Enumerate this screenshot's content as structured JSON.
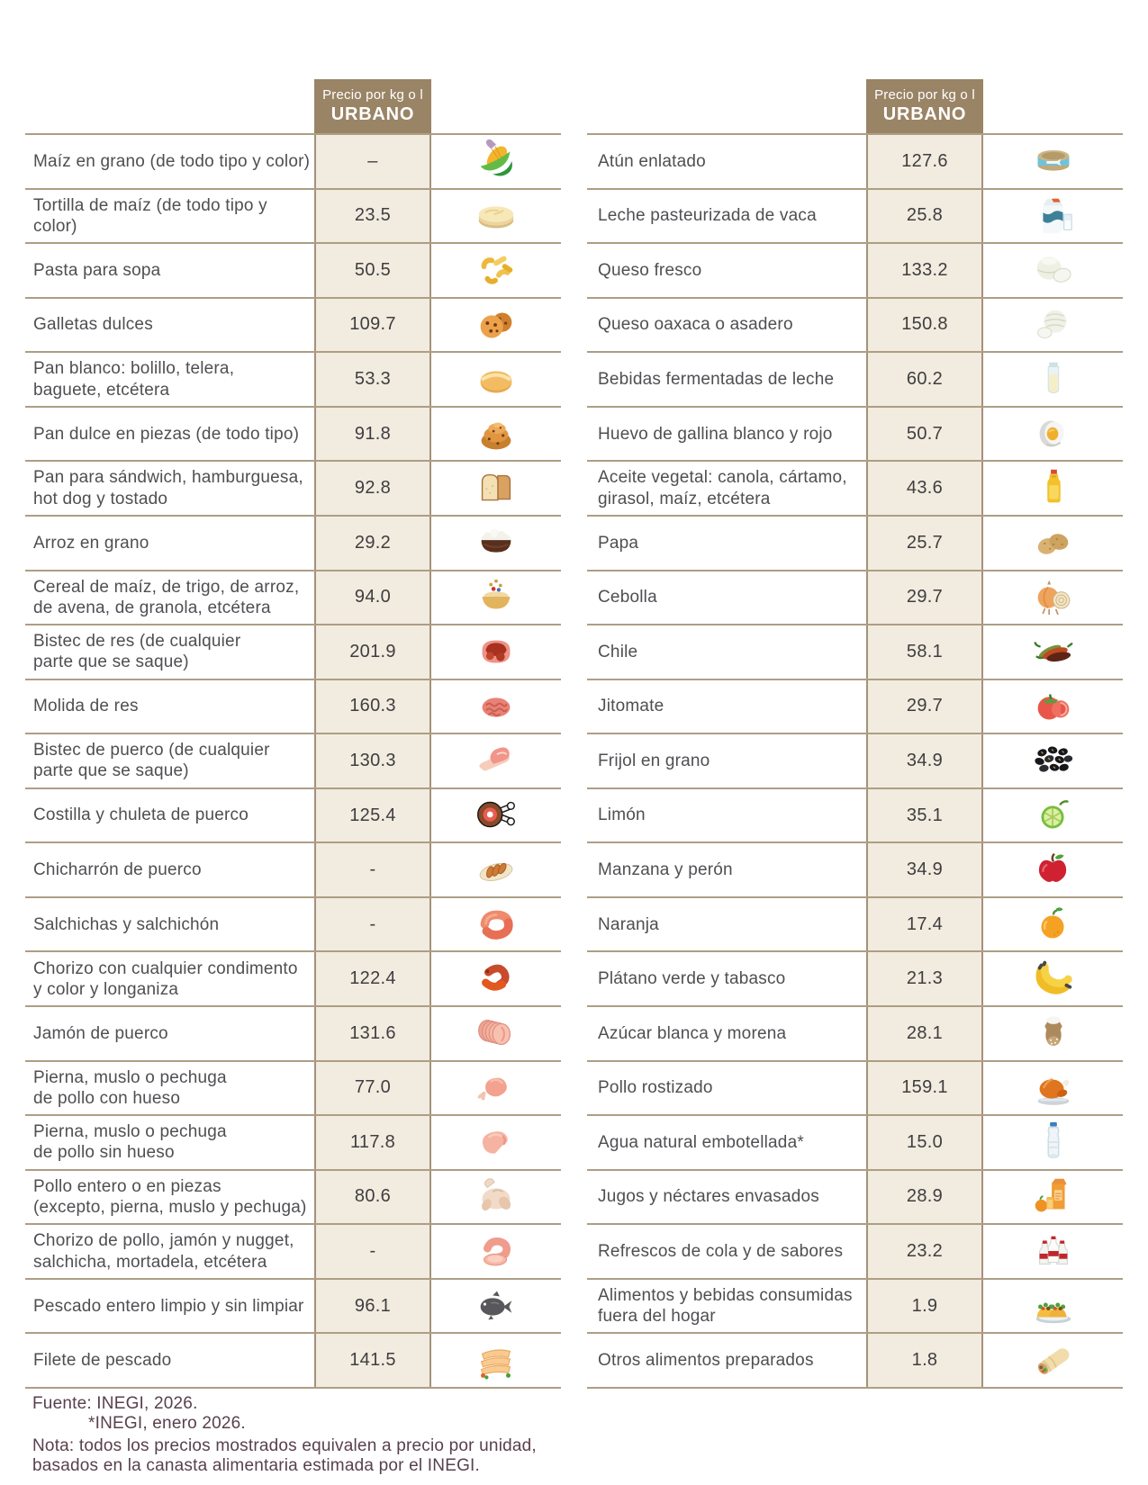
{
  "colors": {
    "header_bg": "#9a8466",
    "price_column_bg": "#f2ebdf",
    "divider": "#ad9e84",
    "item_text": "#4f4f53",
    "price_text": "#3e3e40",
    "footer_text": "#59404e",
    "header_text": "#ffffff"
  },
  "tables": [
    {
      "side": "left",
      "header": {
        "line1": "Precio por kg o l",
        "line2": "URBANO"
      },
      "rows": [
        {
          "name": "Maíz en grano (de todo tipo y color)",
          "price": "–",
          "icon": "corn-icon"
        },
        {
          "name": "Tortilla de maíz (de todo tipo y color)",
          "price": "23.5",
          "icon": "tortilla-icon"
        },
        {
          "name": "Pasta para sopa",
          "price": "50.5",
          "icon": "pasta-icon"
        },
        {
          "name": "Galletas dulces",
          "price": "109.7",
          "icon": "cookies-icon"
        },
        {
          "name": "Pan blanco: bolillo, telera,\nbaguete, etcétera",
          "price": "53.3",
          "icon": "bread-roll-icon"
        },
        {
          "name": "Pan dulce en piezas (de todo tipo)",
          "price": "91.8",
          "icon": "sweet-bun-icon"
        },
        {
          "name": "Pan para sándwich, hamburguesa,\nhot dog y tostado",
          "price": "92.8",
          "icon": "sandwich-bread-icon"
        },
        {
          "name": "Arroz en grano",
          "price": "29.2",
          "icon": "rice-bowl-icon"
        },
        {
          "name": "Cereal de maíz, de trigo, de arroz,\nde avena, de granola, etcétera",
          "price": "94.0",
          "icon": "cereal-bowl-icon"
        },
        {
          "name": "Bistec de res (de cualquier\nparte que se saque)",
          "price": "201.9",
          "icon": "beef-steak-icon"
        },
        {
          "name": "Molida de res",
          "price": "160.3",
          "icon": "ground-beef-icon"
        },
        {
          "name": " Bistec de puerco (de cualquier\n parte que se saque)",
          "price": "130.3",
          "icon": "pork-steak-icon"
        },
        {
          "name": "Costilla y chuleta de puerco",
          "price": "125.4",
          "icon": "ham-leg-icon"
        },
        {
          "name": "Chicharrón de puerco",
          "price": "-",
          "icon": "chicharron-icon"
        },
        {
          "name": "Salchichas y salchichón",
          "price": "-",
          "icon": "sausages-icon"
        },
        {
          "name": "Chorizo con cualquier condimento\n y color y longaniza",
          "price": "122.4",
          "icon": "chorizo-icon"
        },
        {
          "name": "Jamón de puerco",
          "price": "131.6",
          "icon": "ham-slices-icon"
        },
        {
          "name": "Pierna, muslo o pechuga\nde pollo con hueso",
          "price": "77.0",
          "icon": "chicken-leg-icon"
        },
        {
          "name": "Pierna, muslo o pechuga\nde pollo sin hueso",
          "price": "117.8",
          "icon": "chicken-breast-icon"
        },
        {
          "name": "Pollo entero o en piezas\n(excepto, pierna, muslo y pechuga)",
          "price": "80.6",
          "icon": "whole-chicken-icon"
        },
        {
          "name": "Chorizo de pollo, jamón y nugget,\nsalchicha, mortadela, etcétera",
          "price": "-",
          "icon": "cold-cuts-icon"
        },
        {
          "name": "Pescado entero limpio y sin limpiar",
          "price": "96.1",
          "icon": "fish-icon"
        },
        {
          "name": "Filete de pescado",
          "price": "141.5",
          "icon": "fish-fillet-icon"
        }
      ]
    },
    {
      "side": "right",
      "header": {
        "line1": "Precio por kg o l",
        "line2": "URBANO"
      },
      "rows": [
        {
          "name": "Atún enlatado",
          "price": "127.6",
          "icon": "tuna-can-icon"
        },
        {
          "name": "Leche pasteurizada de vaca",
          "price": "25.8",
          "icon": "milk-carton-icon"
        },
        {
          "name": "Queso fresco",
          "price": "133.2",
          "icon": "fresh-cheese-icon"
        },
        {
          "name": "Queso oaxaca o asadero",
          "price": "150.8",
          "icon": "oaxaca-cheese-icon"
        },
        {
          "name": "Bebidas fermentadas de leche",
          "price": "60.2",
          "icon": "fermented-milk-icon"
        },
        {
          "name": "Huevo de gallina blanco y rojo",
          "price": "50.7",
          "icon": "egg-icon"
        },
        {
          "name": "Aceite vegetal: canola, cártamo,\ngirasol, maíz, etcétera",
          "price": "43.6",
          "icon": "oil-bottle-icon"
        },
        {
          "name": "Papa",
          "price": "25.7",
          "icon": "potato-icon"
        },
        {
          "name": "Cebolla",
          "price": "29.7",
          "icon": "onion-icon"
        },
        {
          "name": "Chile",
          "price": "58.1",
          "icon": "chili-icon"
        },
        {
          "name": "Jitomate",
          "price": "29.7",
          "icon": "tomato-icon"
        },
        {
          "name": "Frijol en grano",
          "price": "34.9",
          "icon": "beans-icon"
        },
        {
          "name": "Limón",
          "price": "35.1",
          "icon": "lime-icon"
        },
        {
          "name": "Manzana y perón",
          "price": "34.9",
          "icon": "apple-icon"
        },
        {
          "name": "Naranja",
          "price": "17.4",
          "icon": "orange-icon"
        },
        {
          "name": "Plátano verde y tabasco",
          "price": "21.3",
          "icon": "banana-icon"
        },
        {
          "name": "Azúcar blanca y morena",
          "price": "28.1",
          "icon": "sugar-sack-icon"
        },
        {
          "name": "Pollo rostizado",
          "price": "159.1",
          "icon": "roast-chicken-icon"
        },
        {
          "name": "Agua natural embotellada*",
          "price": "15.0",
          "icon": "water-bottle-icon"
        },
        {
          "name": "Jugos y néctares envasados",
          "price": "28.9",
          "icon": "juice-carton-icon"
        },
        {
          "name": "Refrescos de cola y de sabores",
          "price": "23.2",
          "icon": "soda-bottles-icon"
        },
        {
          "name": "Alimentos y bebidas consumidas\nfuera del hogar",
          "price": "1.9",
          "icon": "tacos-icon"
        },
        {
          "name": "Otros alimentos preparados",
          "price": "1.8",
          "icon": "burrito-icon"
        }
      ]
    }
  ],
  "footer": {
    "source_line1": "Fuente: INEGI, 2026.",
    "source_line2": "*INEGI, enero 2026.",
    "note_line1": "Nota: todos los precios mostrados equivalen a precio por unidad,",
    "note_line2": "basados en la canasta alimentaria estimada por el INEGI."
  },
  "chart_data": {
    "type": "table",
    "value_column": "Precio por kg o l URBANO",
    "rows": [
      [
        "Maíz en grano (de todo tipo y color)",
        null
      ],
      [
        "Tortilla de maíz (de todo tipo y color)",
        23.5
      ],
      [
        "Pasta para sopa",
        50.5
      ],
      [
        "Galletas dulces",
        109.7
      ],
      [
        "Pan blanco: bolillo, telera, baguete, etcétera",
        53.3
      ],
      [
        "Pan dulce en piezas (de todo tipo)",
        91.8
      ],
      [
        "Pan para sándwich, hamburguesa, hot dog y tostado",
        92.8
      ],
      [
        "Arroz en grano",
        29.2
      ],
      [
        "Cereal de maíz, de trigo, de arroz, de avena, de granola, etcétera",
        94.0
      ],
      [
        "Bistec de res (de cualquier parte que se saque)",
        201.9
      ],
      [
        "Molida de res",
        160.3
      ],
      [
        "Bistec de puerco (de cualquier parte que se saque)",
        130.3
      ],
      [
        "Costilla y chuleta de puerco",
        125.4
      ],
      [
        "Chicharrón de puerco",
        null
      ],
      [
        "Salchichas y salchichón",
        null
      ],
      [
        "Chorizo con cualquier condimento y color y longaniza",
        122.4
      ],
      [
        "Jamón de puerco",
        131.6
      ],
      [
        "Pierna, muslo o pechuga de pollo con hueso",
        77.0
      ],
      [
        "Pierna, muslo o pechuga de pollo sin hueso",
        117.8
      ],
      [
        "Pollo entero o en piezas (excepto, pierna, muslo y pechuga)",
        80.6
      ],
      [
        "Chorizo de pollo, jamón y nugget, salchicha, mortadela, etcétera",
        null
      ],
      [
        "Pescado entero limpio y sin limpiar",
        96.1
      ],
      [
        "Filete de pescado",
        141.5
      ],
      [
        "Atún enlatado",
        127.6
      ],
      [
        "Leche pasteurizada de vaca",
        25.8
      ],
      [
        "Queso fresco",
        133.2
      ],
      [
        "Queso oaxaca o asadero",
        150.8
      ],
      [
        "Bebidas fermentadas de leche",
        60.2
      ],
      [
        "Huevo de gallina blanco y rojo",
        50.7
      ],
      [
        "Aceite vegetal: canola, cártamo, girasol, maíz, etcétera",
        43.6
      ],
      [
        "Papa",
        25.7
      ],
      [
        "Cebolla",
        29.7
      ],
      [
        "Chile",
        58.1
      ],
      [
        "Jitomate",
        29.7
      ],
      [
        "Frijol en grano",
        34.9
      ],
      [
        "Limón",
        35.1
      ],
      [
        "Manzana y perón",
        34.9
      ],
      [
        "Naranja",
        17.4
      ],
      [
        "Plátano verde y tabasco",
        21.3
      ],
      [
        "Azúcar blanca y morena",
        28.1
      ],
      [
        "Pollo rostizado",
        159.1
      ],
      [
        "Agua natural embotellada*",
        15.0
      ],
      [
        "Jugos y néctares envasados",
        28.9
      ],
      [
        "Refrescos de cola y de sabores",
        23.2
      ],
      [
        "Alimentos y bebidas consumidas fuera del hogar",
        1.9
      ],
      [
        "Otros alimentos preparados",
        1.8
      ]
    ]
  }
}
